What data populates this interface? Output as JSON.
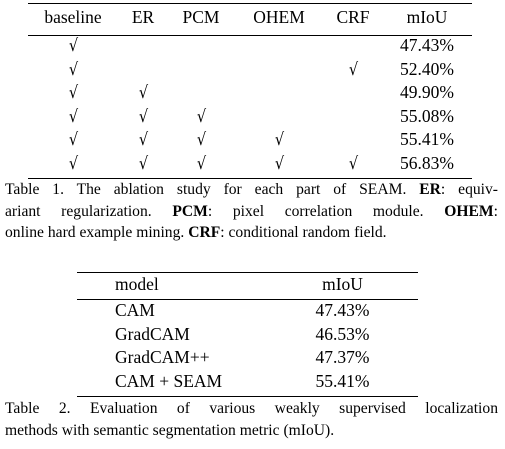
{
  "table1": {
    "headers": [
      "baseline",
      "ER",
      "PCM",
      "OHEM",
      "CRF",
      "mIoU"
    ],
    "check_symbol": "√",
    "rows": [
      {
        "checks": [
          true,
          false,
          false,
          false,
          false
        ],
        "miou": "47.43%"
      },
      {
        "checks": [
          true,
          false,
          false,
          false,
          true
        ],
        "miou": "52.40%"
      },
      {
        "checks": [
          true,
          true,
          false,
          false,
          false
        ],
        "miou": "49.90%"
      },
      {
        "checks": [
          true,
          true,
          true,
          false,
          false
        ],
        "miou": "55.08%"
      },
      {
        "checks": [
          true,
          true,
          true,
          true,
          false
        ],
        "miou": "55.41%"
      },
      {
        "checks": [
          true,
          true,
          true,
          true,
          true
        ],
        "miou": "56.83%"
      }
    ],
    "caption": {
      "prefix": "Table 1. The ablation study for each part of SEAM. ",
      "er_term": "ER",
      "er_text_line1": ": equiv-",
      "er_text_line2": "ariant regularization. ",
      "pcm_term": "PCM",
      "pcm_text": ": pixel correlation module. ",
      "ohem_term": "OHEM",
      "ohem_text": ":",
      "ohem_text_line3": "online hard example mining. ",
      "crf_term": "CRF",
      "crf_text": ": conditional random field."
    }
  },
  "table2": {
    "headers": [
      "model",
      "mIoU"
    ],
    "rows": [
      {
        "model": "CAM",
        "miou": "47.43%"
      },
      {
        "model": "GradCAM",
        "miou": "46.53%"
      },
      {
        "model": "GradCAM++",
        "miou": "47.37%"
      },
      {
        "model": "CAM + SEAM",
        "miou": "55.41%"
      }
    ],
    "caption_line1": "Table 2. Evaluation of various weakly supervised localization",
    "caption_line2": "methods with semantic segmentation metric (mIoU)."
  }
}
